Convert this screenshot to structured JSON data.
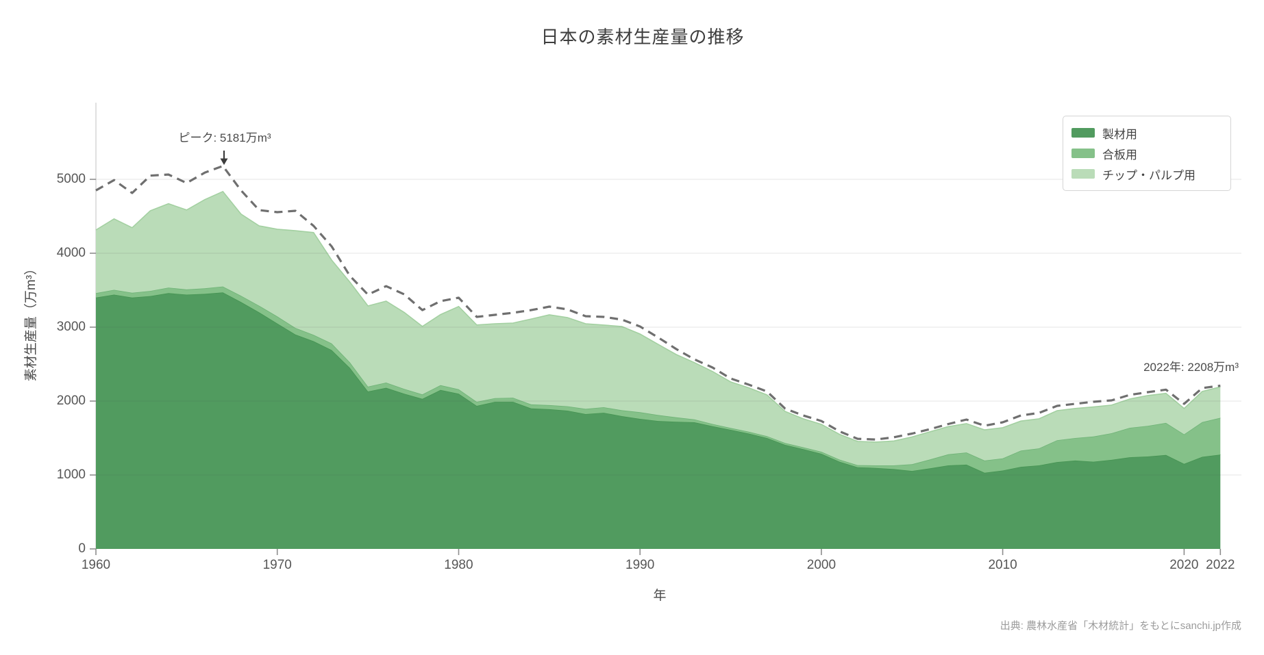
{
  "title": "日本の素材生産量の推移",
  "source": "出典: 農林水産省「木材統計」をもとにsanchi.jp作成",
  "annotations": {
    "peak": {
      "text": "ピーク: 5181万m³",
      "year": 1967,
      "value": 5181
    },
    "latest": {
      "text": "2022年: 2208万m³",
      "year": 2022,
      "value": 2208
    }
  },
  "chart_data": {
    "type": "area",
    "stacked": true,
    "title": "日本の素材生産量の推移",
    "xlabel": "年",
    "ylabel": "素材生産量（万m³）",
    "unit": "万m³",
    "grid": "horizontal",
    "legend_position": "top-right",
    "xlim": [
      1960,
      2022
    ],
    "ylim": [
      0,
      5600
    ],
    "yticks": [
      0,
      1000,
      2000,
      3000,
      4000,
      5000
    ],
    "xticks": [
      1960,
      1970,
      1980,
      1990,
      2000,
      2010,
      2020,
      2022
    ],
    "x": [
      1960,
      1961,
      1962,
      1963,
      1964,
      1965,
      1966,
      1967,
      1968,
      1969,
      1970,
      1971,
      1972,
      1973,
      1974,
      1975,
      1976,
      1977,
      1978,
      1979,
      1980,
      1981,
      1982,
      1983,
      1984,
      1985,
      1986,
      1987,
      1988,
      1989,
      1990,
      1991,
      1992,
      1993,
      1994,
      1995,
      1996,
      1997,
      1998,
      1999,
      2000,
      2001,
      2002,
      2003,
      2004,
      2005,
      2006,
      2007,
      2008,
      2009,
      2010,
      2011,
      2012,
      2013,
      2014,
      2015,
      2016,
      2017,
      2018,
      2019,
      2020,
      2021,
      2022
    ],
    "series": [
      {
        "name": "製材用",
        "color": "#519b5f",
        "edge": "#459352",
        "values": [
          3400,
          3440,
          3400,
          3420,
          3460,
          3440,
          3450,
          3470,
          3340,
          3200,
          3050,
          2900,
          2810,
          2690,
          2450,
          2130,
          2180,
          2100,
          2030,
          2150,
          2100,
          1935,
          1990,
          1990,
          1900,
          1890,
          1870,
          1824,
          1842,
          1796,
          1759,
          1731,
          1720,
          1713,
          1660,
          1611,
          1560,
          1500,
          1407,
          1350,
          1287,
          1180,
          1105,
          1095,
          1080,
          1055,
          1090,
          1130,
          1140,
          1030,
          1060,
          1110,
          1130,
          1175,
          1195,
          1180,
          1205,
          1240,
          1250,
          1270,
          1150,
          1245,
          1276
        ]
      },
      {
        "name": "合板用",
        "color": "#85c189",
        "edge": "#6fb377",
        "values": [
          60,
          65,
          65,
          70,
          75,
          70,
          75,
          80,
          85,
          90,
          95,
          90,
          85,
          90,
          75,
          65,
          70,
          65,
          60,
          65,
          60,
          55,
          50,
          55,
          55,
          55,
          60,
          70,
          75,
          80,
          90,
          80,
          60,
          40,
          30,
          25,
          25,
          25,
          25,
          25,
          28,
          28,
          28,
          35,
          50,
          90,
          120,
          150,
          165,
          165,
          165,
          220,
          230,
          295,
          305,
          340,
          360,
          398,
          415,
          435,
          400,
          470,
          497
        ]
      },
      {
        "name": "チップ・パルプ用",
        "color": "#badcb8",
        "edge": "#a3d0a1",
        "values": [
          855,
          960,
          880,
          1085,
          1135,
          1075,
          1200,
          1285,
          1105,
          1080,
          1180,
          1315,
          1385,
          1127,
          1086,
          1092,
          1102,
          1035,
          920,
          955,
          1120,
          1040,
          1006,
          1011,
          1155,
          1222,
          1200,
          1152,
          1112,
          1133,
          1058,
          957,
          850,
          767,
          710,
          623,
          595,
          558,
          428,
          385,
          370,
          342,
          322,
          315,
          330,
          370,
          375,
          375,
          390,
          415,
          415,
          400,
          400,
          400,
          400,
          400,
          380,
          390,
          410,
          400,
          350,
          415,
          419
        ]
      }
    ],
    "total_line": {
      "style": "dashed",
      "color": "#6f6f6f",
      "values": [
        4850,
        4990,
        4815,
        5050,
        5065,
        4950,
        5090,
        5181,
        4850,
        4583,
        4556,
        4574,
        4370,
        4093,
        3694,
        3440,
        3555,
        3444,
        3231,
        3352,
        3398,
        3139,
        3167,
        3194,
        3231,
        3278,
        3241,
        3148,
        3139,
        3102,
        3009,
        2861,
        2704,
        2565,
        2454,
        2306,
        2222,
        2130,
        1898,
        1806,
        1731,
        1590,
        1490,
        1480,
        1510,
        1560,
        1620,
        1690,
        1750,
        1667,
        1713,
        1806,
        1840,
        1935,
        1963,
        1991,
        2009,
        2083,
        2120,
        2155,
        1963,
        2176,
        2208
      ]
    }
  }
}
